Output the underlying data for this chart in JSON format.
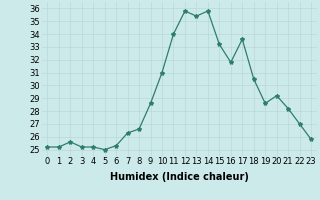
{
  "x": [
    0,
    1,
    2,
    3,
    4,
    5,
    6,
    7,
    8,
    9,
    10,
    11,
    12,
    13,
    14,
    15,
    16,
    17,
    18,
    19,
    20,
    21,
    22,
    23
  ],
  "y": [
    25.2,
    25.2,
    25.6,
    25.2,
    25.2,
    25.0,
    25.3,
    26.3,
    26.6,
    28.6,
    31.0,
    34.0,
    35.8,
    35.4,
    35.8,
    33.2,
    31.8,
    33.6,
    30.5,
    28.6,
    29.2,
    28.2,
    27.0,
    25.8
  ],
  "xlabel": "Humidex (Indice chaleur)",
  "ylim": [
    24.5,
    36.5
  ],
  "xlim": [
    -0.5,
    23.5
  ],
  "yticks": [
    25,
    26,
    27,
    28,
    29,
    30,
    31,
    32,
    33,
    34,
    35,
    36
  ],
  "xtick_labels": [
    "0",
    "1",
    "2",
    "3",
    "4",
    "5",
    "6",
    "7",
    "8",
    "9",
    "10",
    "11",
    "12",
    "13",
    "14",
    "15",
    "16",
    "17",
    "18",
    "19",
    "20",
    "21",
    "22",
    "23"
  ],
  "line_color": "#2e7d6e",
  "marker": "*",
  "bg_color": "#cdeaea",
  "grid_color": "#b8d8d6",
  "fig_bg": "#cdeaea",
  "tick_fontsize": 6.0,
  "xlabel_fontsize": 7.0
}
